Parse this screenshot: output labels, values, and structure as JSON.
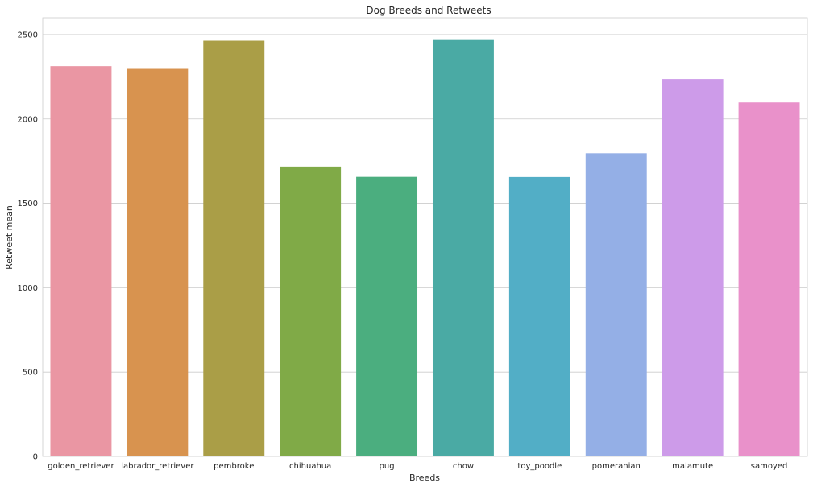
{
  "chart_data": {
    "type": "bar",
    "title": "Dog Breeds and Retweets",
    "xlabel": "Breeds",
    "ylabel": "Retweet mean",
    "categories": [
      "golden_retriever",
      "labrador_retriever",
      "pembroke",
      "chihuahua",
      "pug",
      "chow",
      "toy_poodle",
      "pomeranian",
      "malamute",
      "samoyed"
    ],
    "values": [
      2313,
      2297,
      2464,
      1718,
      1657,
      2468,
      1656,
      1797,
      2237,
      2098
    ],
    "colors": [
      "#ea96a3",
      "#d8934f",
      "#aa9e47",
      "#80aa47",
      "#4bae7f",
      "#4aaaa4",
      "#52aec6",
      "#94afe6",
      "#cd9be9",
      "#e991ca"
    ],
    "ylim": [
      0,
      2600
    ],
    "yticks": [
      0,
      500,
      1000,
      1500,
      2000,
      2500
    ],
    "grid": true,
    "legend": "none"
  }
}
